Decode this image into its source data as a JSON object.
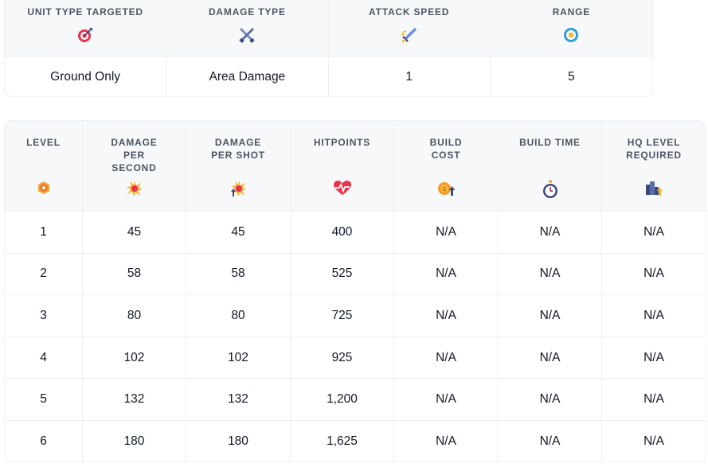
{
  "unit_info": {
    "headers": [
      {
        "label": "UNIT TYPE TARGETED",
        "icon": "target-icon"
      },
      {
        "label": "DAMAGE TYPE",
        "icon": "crossed-swords-icon"
      },
      {
        "label": "ATTACK SPEED",
        "icon": "sword-speed-icon"
      },
      {
        "label": "RANGE",
        "icon": "range-target-icon"
      }
    ],
    "values": [
      "Ground Only",
      "Area Damage",
      "1",
      "5"
    ]
  },
  "level_table": {
    "headers": [
      {
        "label": "LEVEL",
        "icon": "level-badge-icon"
      },
      {
        "label": "DAMAGE PER SECOND",
        "icon": "explosion-icon"
      },
      {
        "label": "DAMAGE PER SHOT",
        "icon": "explosion-up-icon"
      },
      {
        "label": "HITPOINTS",
        "icon": "heart-pulse-icon"
      },
      {
        "label": "BUILD COST",
        "icon": "coin-up-icon"
      },
      {
        "label": "BUILD TIME",
        "icon": "stopwatch-icon"
      },
      {
        "label": "HQ LEVEL REQUIRED",
        "icon": "hq-building-icon"
      }
    ],
    "rows": [
      [
        "1",
        "45",
        "45",
        "400",
        "N/A",
        "N/A",
        "N/A"
      ],
      [
        "2",
        "58",
        "58",
        "525",
        "N/A",
        "N/A",
        "N/A"
      ],
      [
        "3",
        "80",
        "80",
        "725",
        "N/A",
        "N/A",
        "N/A"
      ],
      [
        "4",
        "102",
        "102",
        "925",
        "N/A",
        "N/A",
        "N/A"
      ],
      [
        "5",
        "132",
        "132",
        "1,200",
        "N/A",
        "N/A",
        "N/A"
      ],
      [
        "6",
        "180",
        "180",
        "1,625",
        "N/A",
        "N/A",
        "N/A"
      ]
    ]
  },
  "colors": {
    "header_bg": "#f7f8fa",
    "border": "#eef0f3",
    "header_text": "#4b5563",
    "body_text": "#111827"
  }
}
